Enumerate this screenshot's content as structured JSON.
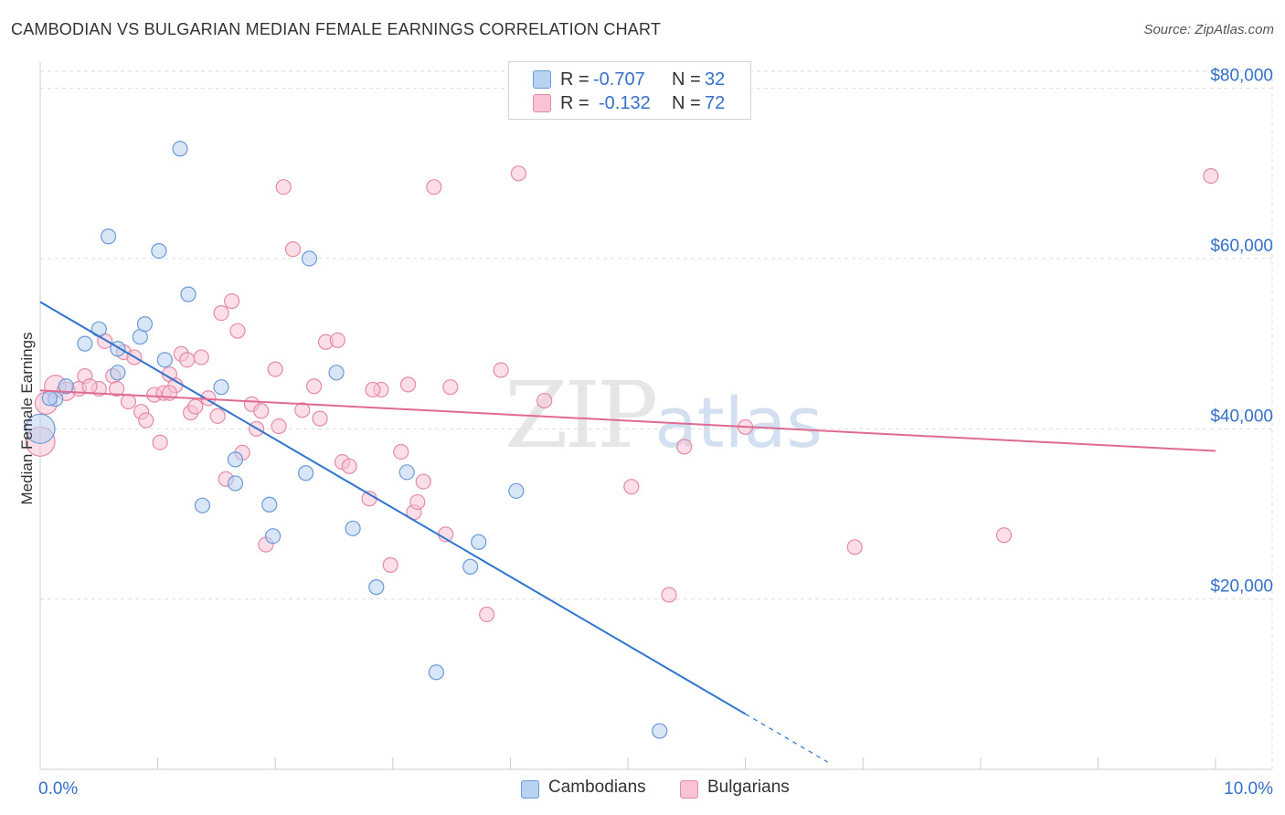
{
  "title": "CAMBODIAN VS BULGARIAN MEDIAN FEMALE EARNINGS CORRELATION CHART",
  "source": "Source: ZipAtlas.com",
  "watermark": {
    "zip": "ZIP",
    "atlas": "atlas"
  },
  "legend": {
    "r_label": "R =",
    "n_label": "N =",
    "series": [
      {
        "name": "Cambodians",
        "r": "-0.707",
        "n": "32",
        "fill": "#b8d2f2",
        "stroke": "#6a9ad8"
      },
      {
        "name": "Bulgarians",
        "r": "-0.132",
        "n": "72",
        "fill": "#f8c3d3",
        "stroke": "#e48aa8"
      }
    ]
  },
  "colors": {
    "blue_line": "#2f74d0",
    "pink_line": "#e06b92",
    "tick_label": "#3570c9",
    "grid": "#dddddd"
  },
  "chart_data": {
    "type": "scatter",
    "title": "CAMBODIAN VS BULGARIAN MEDIAN FEMALE EARNINGS CORRELATION CHART",
    "xlabel": "",
    "ylabel": "Median Female Earnings",
    "xlim": [
      0,
      10
    ],
    "ylim": [
      0,
      82000
    ],
    "x_tick_labels": {
      "min": "0.0%",
      "max": "10.0%"
    },
    "y_ticks": [
      {
        "value": 20000,
        "label": "$20,000"
      },
      {
        "value": 40000,
        "label": "$40,000"
      },
      {
        "value": 60000,
        "label": "$60,000"
      },
      {
        "value": 80000,
        "label": "$80,000"
      }
    ],
    "series": [
      {
        "name": "Cambodians",
        "trend": {
          "x1": 0.0,
          "y1": 54900,
          "x2": 6.0,
          "y2": 6500,
          "dash_to_x": 6.7
        },
        "points": [
          [
            0.0,
            40000,
            16
          ],
          [
            0.13,
            43500,
            8
          ],
          [
            0.22,
            45000,
            8
          ],
          [
            0.38,
            50000,
            8
          ],
          [
            0.5,
            51700,
            8
          ],
          [
            0.66,
            49400,
            8
          ],
          [
            0.66,
            46600,
            8
          ],
          [
            0.85,
            50800,
            8
          ],
          [
            0.89,
            52300,
            8
          ],
          [
            1.01,
            60900,
            8
          ],
          [
            0.58,
            62600,
            8
          ],
          [
            1.06,
            48100,
            8
          ],
          [
            1.19,
            72900,
            8
          ],
          [
            1.26,
            55800,
            8
          ],
          [
            1.38,
            31000,
            8
          ],
          [
            1.54,
            44900,
            8
          ],
          [
            1.66,
            36400,
            8
          ],
          [
            1.66,
            33600,
            8
          ],
          [
            1.95,
            31100,
            8
          ],
          [
            1.98,
            27400,
            8
          ],
          [
            2.26,
            34800,
            8
          ],
          [
            2.29,
            60000,
            8
          ],
          [
            2.52,
            46600,
            8
          ],
          [
            2.66,
            28300,
            8
          ],
          [
            2.86,
            21400,
            8
          ],
          [
            3.12,
            34900,
            8
          ],
          [
            3.37,
            11400,
            8
          ],
          [
            3.66,
            23800,
            8
          ],
          [
            3.73,
            26700,
            8
          ],
          [
            4.05,
            32700,
            8
          ],
          [
            5.27,
            4500,
            8
          ],
          [
            0.08,
            43600,
            8
          ]
        ]
      },
      {
        "name": "Bulgarians",
        "trend": {
          "x1": 0.0,
          "y1": 44500,
          "x2": 10.0,
          "y2": 37400
        },
        "points": [
          [
            0.0,
            38500,
            16
          ],
          [
            0.05,
            43000,
            12
          ],
          [
            0.13,
            45000,
            12
          ],
          [
            0.22,
            44400,
            10
          ],
          [
            0.33,
            44700,
            8
          ],
          [
            0.38,
            46200,
            8
          ],
          [
            0.5,
            44700,
            8
          ],
          [
            0.55,
            50300,
            8
          ],
          [
            0.62,
            46200,
            8
          ],
          [
            0.65,
            44700,
            8
          ],
          [
            0.71,
            49000,
            8
          ],
          [
            0.75,
            43200,
            8
          ],
          [
            0.8,
            48400,
            8
          ],
          [
            0.86,
            42000,
            8
          ],
          [
            0.9,
            41000,
            8
          ],
          [
            0.97,
            44000,
            8
          ],
          [
            1.02,
            38400,
            8
          ],
          [
            1.05,
            44200,
            8
          ],
          [
            1.1,
            46400,
            8
          ],
          [
            1.15,
            45100,
            8
          ],
          [
            1.2,
            48800,
            8
          ],
          [
            1.25,
            48100,
            8
          ],
          [
            1.28,
            41900,
            8
          ],
          [
            1.32,
            42600,
            8
          ],
          [
            1.37,
            48400,
            8
          ],
          [
            1.43,
            43600,
            8
          ],
          [
            1.51,
            41500,
            8
          ],
          [
            1.54,
            53600,
            8
          ],
          [
            1.58,
            34100,
            8
          ],
          [
            1.63,
            55000,
            8
          ],
          [
            1.68,
            51500,
            8
          ],
          [
            1.72,
            37200,
            8
          ],
          [
            1.8,
            42900,
            8
          ],
          [
            1.84,
            40000,
            8
          ],
          [
            1.88,
            42100,
            8
          ],
          [
            1.92,
            26400,
            8
          ],
          [
            2.0,
            47000,
            8
          ],
          [
            2.03,
            40300,
            8
          ],
          [
            2.07,
            68400,
            8
          ],
          [
            2.15,
            61100,
            8
          ],
          [
            2.23,
            42200,
            8
          ],
          [
            2.33,
            45000,
            8
          ],
          [
            2.38,
            41200,
            8
          ],
          [
            2.43,
            50200,
            8
          ],
          [
            2.53,
            50400,
            8
          ],
          [
            2.57,
            36100,
            8
          ],
          [
            2.63,
            35600,
            8
          ],
          [
            2.8,
            31800,
            8
          ],
          [
            2.9,
            44600,
            8
          ],
          [
            2.98,
            24000,
            8
          ],
          [
            3.07,
            37300,
            8
          ],
          [
            3.13,
            45200,
            8
          ],
          [
            3.18,
            30200,
            8
          ],
          [
            3.21,
            31400,
            8
          ],
          [
            3.26,
            33800,
            8
          ],
          [
            3.35,
            68400,
            8
          ],
          [
            3.45,
            27600,
            8
          ],
          [
            3.49,
            44900,
            8
          ],
          [
            3.8,
            18200,
            8
          ],
          [
            3.92,
            46900,
            8
          ],
          [
            4.07,
            70000,
            8
          ],
          [
            4.29,
            43300,
            8
          ],
          [
            5.03,
            33200,
            8
          ],
          [
            5.35,
            20500,
            8
          ],
          [
            5.48,
            37900,
            8
          ],
          [
            6.0,
            40200,
            8
          ],
          [
            6.93,
            26100,
            8
          ],
          [
            8.2,
            27500,
            8
          ],
          [
            9.96,
            69700,
            8
          ],
          [
            0.42,
            45000,
            8
          ],
          [
            2.83,
            44600,
            8
          ],
          [
            1.1,
            44200,
            8
          ]
        ]
      }
    ]
  }
}
